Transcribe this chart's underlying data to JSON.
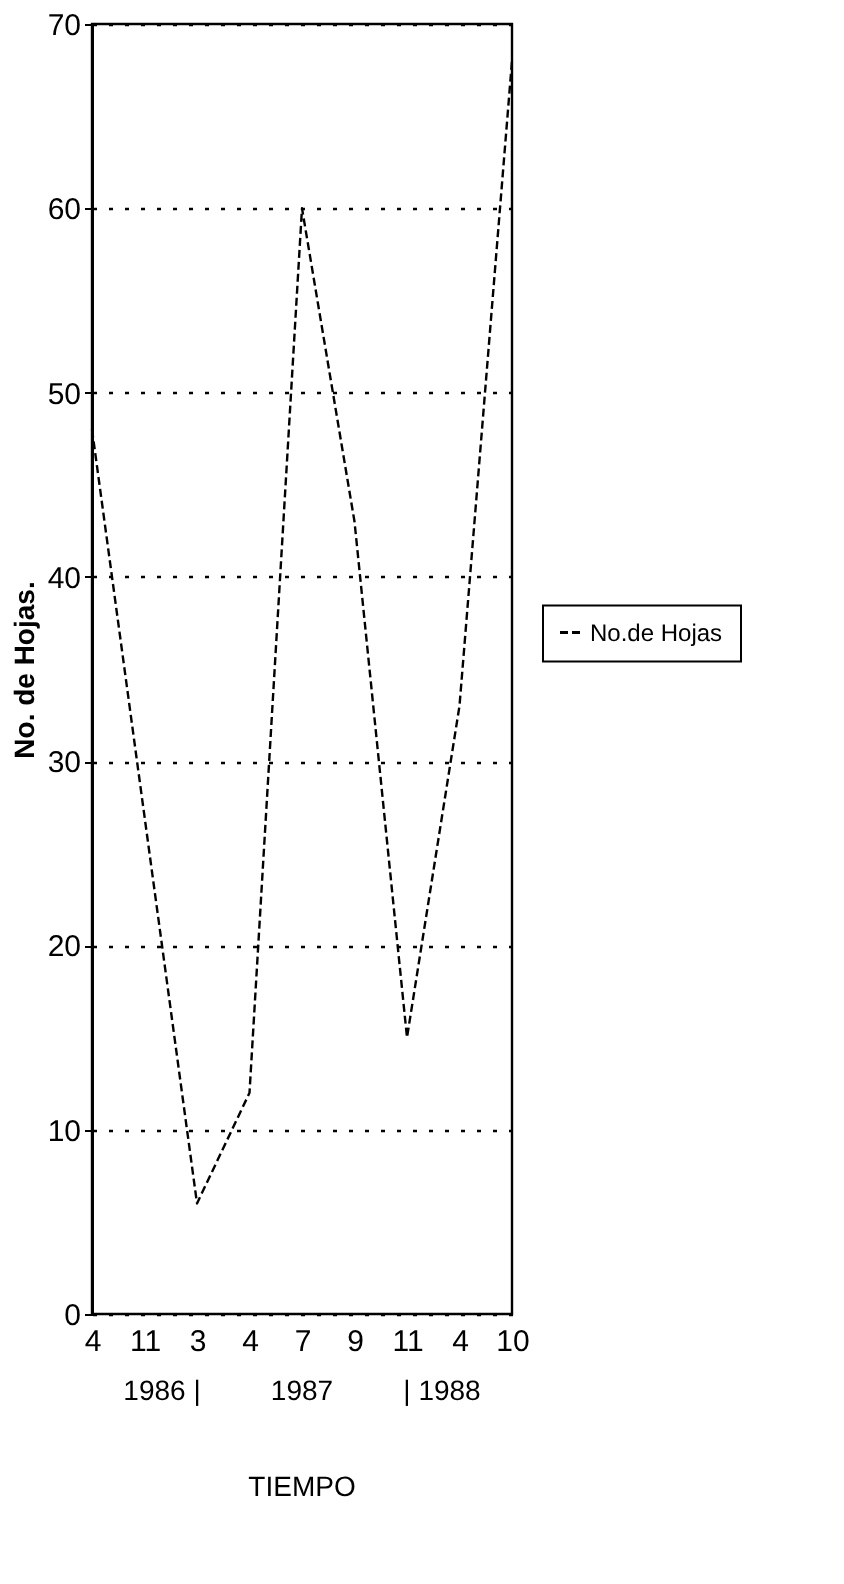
{
  "chart_data": {
    "type": "line",
    "xlabel": "TIEMPO",
    "ylabel": "No. de Hojas.",
    "categories": [
      "4",
      "11",
      "3",
      "4",
      "7",
      "9",
      "11",
      "4",
      "10"
    ],
    "series": [
      {
        "name": "No.de Hojas",
        "color": "#000000",
        "values": [
          48,
          27,
          6,
          12,
          60,
          43,
          15,
          33,
          68
        ]
      }
    ],
    "ylim": [
      0,
      70
    ],
    "yticks": [
      0,
      10,
      20,
      30,
      40,
      50,
      60,
      70
    ],
    "grid": "y",
    "legend": "right",
    "marker": "none",
    "line_style": "dashed",
    "annotations": [
      "1986 |",
      "1987",
      "| 1988"
    ]
  }
}
